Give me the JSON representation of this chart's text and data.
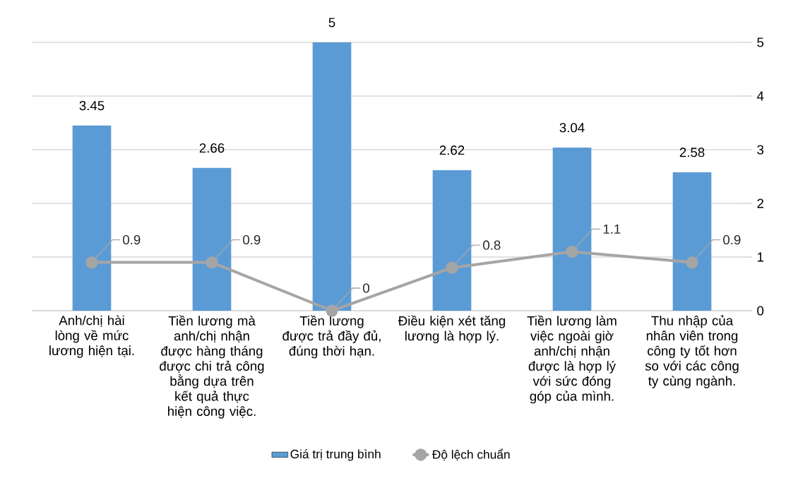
{
  "chart_data": {
    "type": "bar",
    "categories": [
      "Anh/chị hài lòng về mức lương hiện tại.",
      "Tiền lương mà anh/chị nhận được hàng tháng được chi trả công bằng dựa trên kết quả thực hiện công việc.",
      "Tiền lương được trả đầy đủ, đúng thời hạn.",
      "Điều kiện xét tăng lương là hợp lý.",
      "Tiền lương làm việc ngoài giờ anh/chị nhận được là hợp lý với sức đóng góp của mình.",
      "Thu nhập của nhân viên trong công ty tốt hơn so với các công ty cùng ngành."
    ],
    "series": [
      {
        "name": "Giá trị trung bình",
        "color": "#5b9bd5",
        "values": [
          3.45,
          2.66,
          5,
          2.62,
          3.04,
          2.58
        ]
      },
      {
        "name": "Độ lệch chuẩn",
        "type": "line",
        "color": "#a5a5a5",
        "marker": "circle",
        "values": [
          0.9,
          0.9,
          0,
          0.8,
          1.1,
          0.9
        ]
      }
    ],
    "ylim": [
      0,
      5
    ],
    "yticks": [
      0,
      1,
      2,
      3,
      4,
      5
    ],
    "grid": "y",
    "legend": "bottom",
    "data_labels": true
  }
}
